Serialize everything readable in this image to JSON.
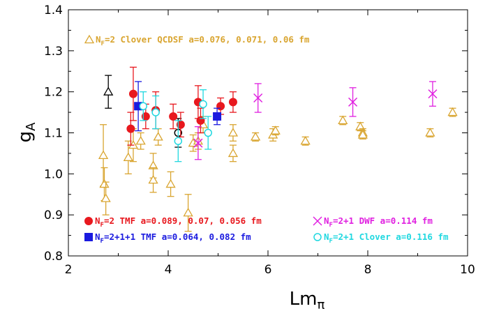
{
  "chart_data": {
    "type": "scatter",
    "xlabel": "Lm",
    "xlabel_sub": "π",
    "ylabel": "g",
    "ylabel_sub": "A",
    "xlim": [
      2,
      10
    ],
    "ylim": [
      0.8,
      1.4
    ],
    "xticks": [
      "2",
      "4",
      "6",
      "8",
      "10"
    ],
    "yticks": [
      "0.8",
      "0.9",
      "1.0",
      "1.1",
      "1.2",
      "1.3",
      "1.4"
    ],
    "grid": false,
    "series": [
      {
        "name": "Nf=2 Clover QCDSF a=0.076, 0.071, 0.06 fm",
        "legend_prefix": "N",
        "legend_sub": "F",
        "legend_rest": "=2 Clover QCDSF a=0.076, 0.071, 0.06 fm",
        "marker": "triangle",
        "color": "#d9a530",
        "points": [
          {
            "x": 2.7,
            "y": 1.045,
            "err": 0.075
          },
          {
            "x": 2.72,
            "y": 0.975,
            "err": 0.04
          },
          {
            "x": 2.75,
            "y": 0.94,
            "err": 0.04
          },
          {
            "x": 3.2,
            "y": 1.04,
            "err": 0.04
          },
          {
            "x": 3.3,
            "y": 1.07,
            "err": 0.04
          },
          {
            "x": 3.45,
            "y": 1.08,
            "err": 0.02
          },
          {
            "x": 3.7,
            "y": 1.02,
            "err": 0.03
          },
          {
            "x": 3.7,
            "y": 0.985,
            "err": 0.03
          },
          {
            "x": 3.8,
            "y": 1.09,
            "err": 0.02
          },
          {
            "x": 4.05,
            "y": 0.975,
            "err": 0.03
          },
          {
            "x": 4.4,
            "y": 0.905,
            "err": 0.045
          },
          {
            "x": 4.5,
            "y": 1.075,
            "err": 0.02
          },
          {
            "x": 4.6,
            "y": 1.08,
            "err": 0.02
          },
          {
            "x": 4.7,
            "y": 1.12,
            "err": 0.02
          },
          {
            "x": 5.3,
            "y": 1.1,
            "err": 0.02
          },
          {
            "x": 5.3,
            "y": 1.05,
            "err": 0.02
          },
          {
            "x": 5.75,
            "y": 1.09,
            "err": 0.01
          },
          {
            "x": 6.1,
            "y": 1.095,
            "err": 0.015
          },
          {
            "x": 6.15,
            "y": 1.105,
            "err": 0.01
          },
          {
            "x": 6.75,
            "y": 1.08,
            "err": 0.01
          },
          {
            "x": 7.5,
            "y": 1.13,
            "err": 0.01
          },
          {
            "x": 7.85,
            "y": 1.115,
            "err": 0.01
          },
          {
            "x": 7.9,
            "y": 1.1,
            "err": 0.01
          },
          {
            "x": 7.9,
            "y": 1.095,
            "err": 0.01
          },
          {
            "x": 9.25,
            "y": 1.1,
            "err": 0.01
          },
          {
            "x": 9.7,
            "y": 1.15,
            "err": 0.01
          }
        ]
      },
      {
        "name": "Nf=2 TMF a=0.089, 0.07, 0.056 fm",
        "legend_prefix": "N",
        "legend_sub": "F",
        "legend_rest": "=2 TMF a=0.089, 0.07, 0.056 fm",
        "marker": "filled-circle",
        "color": "#e8181e",
        "points": [
          {
            "x": 3.25,
            "y": 1.11,
            "err": 0.04
          },
          {
            "x": 3.3,
            "y": 1.195,
            "err": 0.065
          },
          {
            "x": 3.55,
            "y": 1.14,
            "err": 0.03
          },
          {
            "x": 3.75,
            "y": 1.155,
            "err": 0.045
          },
          {
            "x": 4.1,
            "y": 1.14,
            "err": 0.03
          },
          {
            "x": 4.25,
            "y": 1.12,
            "err": 0.03
          },
          {
            "x": 4.6,
            "y": 1.175,
            "err": 0.04
          },
          {
            "x": 4.65,
            "y": 1.13,
            "err": 0.03
          },
          {
            "x": 5.05,
            "y": 1.165,
            "err": 0.02
          },
          {
            "x": 5.3,
            "y": 1.175,
            "err": 0.025
          }
        ]
      },
      {
        "name": "Nf=2+1+1 TMF a=0.064, 0.082 fm",
        "legend_prefix": "N",
        "legend_sub": "F",
        "legend_rest": "=2+1+1 TMF a=0.064, 0.082 fm",
        "marker": "filled-square",
        "color": "#1a1adf",
        "points": [
          {
            "x": 3.4,
            "y": 1.165,
            "err": 0.06
          },
          {
            "x": 4.98,
            "y": 1.14,
            "err": 0.02
          }
        ]
      },
      {
        "name": "Nf=2+1 DWF a=0.114 fm",
        "legend_prefix": "N",
        "legend_sub": "F",
        "legend_rest": "=2+1 DWF a=0.114 fm",
        "marker": "cross",
        "color": "#e020e0",
        "points": [
          {
            "x": 4.6,
            "y": 1.075,
            "err": 0.04
          },
          {
            "x": 5.8,
            "y": 1.185,
            "err": 0.035
          },
          {
            "x": 7.7,
            "y": 1.175,
            "err": 0.035
          },
          {
            "x": 9.3,
            "y": 1.195,
            "err": 0.03
          }
        ]
      },
      {
        "name": "Nf=2+1 Clover a=0.116 fm",
        "legend_prefix": "N",
        "legend_sub": "F",
        "legend_rest": "=2+1 Clover a=0.116 fm",
        "marker": "open-circle",
        "color": "#20d8e0",
        "points": [
          {
            "x": 3.5,
            "y": 1.165,
            "err": 0.035
          },
          {
            "x": 3.75,
            "y": 1.15,
            "err": 0.04
          },
          {
            "x": 4.2,
            "y": 1.08,
            "err": 0.05
          },
          {
            "x": 4.7,
            "y": 1.17,
            "err": 0.035
          },
          {
            "x": 4.8,
            "y": 1.1,
            "err": 0.04
          }
        ]
      },
      {
        "name": "",
        "marker": "triangle",
        "color": "#000000",
        "points": [
          {
            "x": 2.8,
            "y": 1.2,
            "err": 0.04
          }
        ]
      },
      {
        "name": "",
        "marker": "open-circle",
        "color": "#000000",
        "points": [
          {
            "x": 4.2,
            "y": 1.1,
            "err": 0.035
          }
        ]
      }
    ]
  }
}
